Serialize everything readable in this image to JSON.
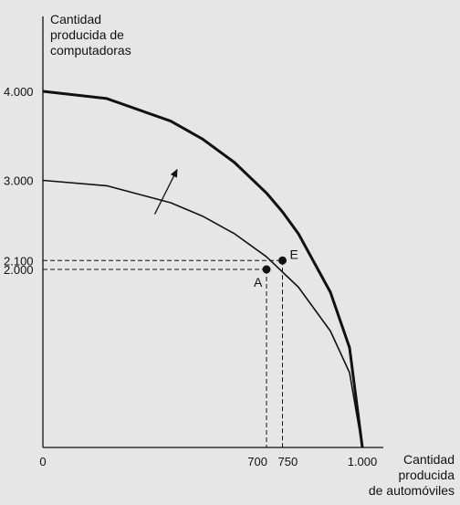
{
  "chart_data": {
    "type": "line",
    "y_label_lines": [
      "Cantidad",
      "producida de",
      "computadoras"
    ],
    "x_label_lines": [
      "Cantidad",
      "producida",
      "de automóviles"
    ],
    "x_range": [
      0,
      1000
    ],
    "y_range": [
      0,
      4000
    ],
    "x_ticks": [
      {
        "value": 0,
        "label": "0"
      },
      {
        "value": 700,
        "label": "700"
      },
      {
        "value": 750,
        "label": "750"
      },
      {
        "value": 1000,
        "label": "1.000"
      }
    ],
    "y_ticks": [
      {
        "value": 4000,
        "label": "4.000"
      },
      {
        "value": 3000,
        "label": "3.000"
      },
      {
        "value": 2100,
        "label": "2.100"
      },
      {
        "value": 2000,
        "label": "2.000"
      }
    ],
    "series": [
      {
        "x": [
          0,
          200,
          400,
          500,
          600,
          700,
          800,
          900,
          960,
          1000
        ],
        "y": [
          3000,
          2939,
          2749,
          2598,
          2400,
          2142,
          1800,
          1308,
          840,
          0
        ],
        "style": "thin"
      },
      {
        "x": [
          0,
          200,
          400,
          500,
          600,
          700,
          750,
          800,
          900,
          960,
          1000
        ],
        "y": [
          4000,
          3919,
          3666,
          3464,
          3200,
          2857,
          2646,
          2400,
          1744,
          1120,
          0
        ],
        "style": "thick"
      }
    ],
    "points": [
      {
        "label": "A",
        "x": 700,
        "y": 2000
      },
      {
        "label": "E",
        "x": 750,
        "y": 2100
      }
    ],
    "guides": [
      {
        "x": 700,
        "y": 2000
      },
      {
        "x": 750,
        "y": 2100
      }
    ],
    "arrow": {
      "from": [
        350,
        2620
      ],
      "to": [
        420,
        3120
      ]
    },
    "grid": false,
    "line_color": "#111111",
    "background": "#e6e6e6"
  }
}
